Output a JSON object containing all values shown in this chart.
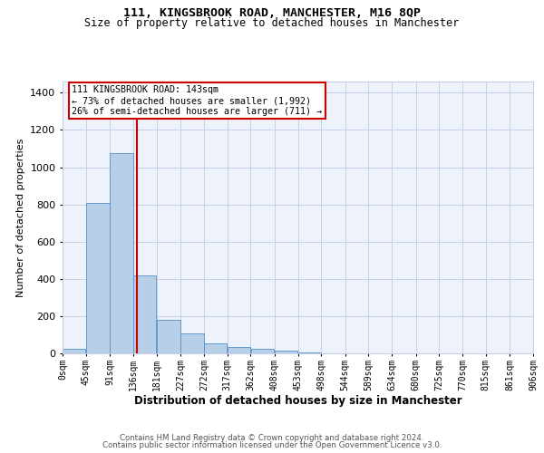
{
  "title1": "111, KINGSBROOK ROAD, MANCHESTER, M16 8QP",
  "title2": "Size of property relative to detached houses in Manchester",
  "xlabel": "Distribution of detached houses by size in Manchester",
  "ylabel": "Number of detached properties",
  "annotation_line1": "111 KINGSBROOK ROAD: 143sqm",
  "annotation_line2": "← 73% of detached houses are smaller (1,992)",
  "annotation_line3": "26% of semi-detached houses are larger (711) →",
  "footer1": "Contains HM Land Registry data © Crown copyright and database right 2024.",
  "footer2": "Contains public sector information licensed under the Open Government Licence v3.0.",
  "bar_color": "#b8cfe8",
  "bar_edge_color": "#5590c8",
  "red_line_x": 143,
  "bin_edges": [
    0,
    45,
    91,
    136,
    181,
    227,
    272,
    317,
    362,
    408,
    453,
    498,
    544,
    589,
    634,
    680,
    725,
    770,
    815,
    861,
    906
  ],
  "bar_heights": [
    25,
    810,
    1075,
    420,
    180,
    105,
    55,
    35,
    25,
    15,
    5,
    2,
    1,
    1,
    1,
    0,
    0,
    0,
    0,
    0
  ],
  "ylim": [
    0,
    1460
  ],
  "yticks": [
    0,
    200,
    400,
    600,
    800,
    1000,
    1200,
    1400
  ],
  "bg_color": "#eef2fb",
  "grid_color": "#c5cfe8",
  "annotation_box_color": "#cc0000",
  "fig_width": 6.0,
  "fig_height": 5.0,
  "dpi": 100
}
